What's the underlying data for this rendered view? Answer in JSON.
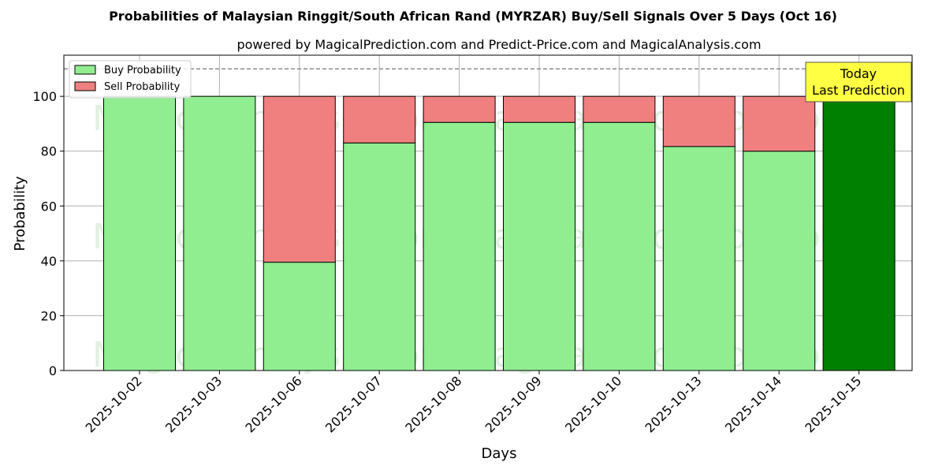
{
  "chart_data": {
    "type": "bar",
    "stacked": true,
    "title": "Probabilities of Malaysian Ringgit/South African Rand (MYRZAR) Buy/Sell Signals Over 5 Days (Oct 16)",
    "subtitle": "powered by MagicalPrediction.com and Predict-Price.com and MagicalAnalysis.com",
    "xlabel": "Days",
    "ylabel": "Probability",
    "ylim": [
      0,
      115
    ],
    "yticks": [
      0,
      20,
      40,
      60,
      80,
      100
    ],
    "reference_line": 110,
    "grid": true,
    "legend_position": "top-left",
    "categories": [
      "2025-10-02",
      "2025-10-03",
      "2025-10-06",
      "2025-10-07",
      "2025-10-08",
      "2025-10-09",
      "2025-10-10",
      "2025-10-13",
      "2025-10-14",
      "2025-10-15"
    ],
    "series": [
      {
        "name": "Buy Probability",
        "color": "#90ee90",
        "values": [
          100,
          100,
          39.5,
          83,
          90.5,
          90.5,
          90.5,
          81.7,
          80,
          100
        ]
      },
      {
        "name": "Sell Probability",
        "color": "#f08080",
        "values": [
          0,
          0,
          60.5,
          17,
          9.5,
          9.5,
          9.5,
          18.3,
          20,
          0
        ]
      }
    ],
    "highlight": {
      "index": 9,
      "color": "#008000"
    },
    "annotation": {
      "line1": "Today",
      "line2": "Last Prediction"
    },
    "watermarks": [
      "MagicalAnalysis.com",
      "MagicalPrediction.com"
    ]
  }
}
